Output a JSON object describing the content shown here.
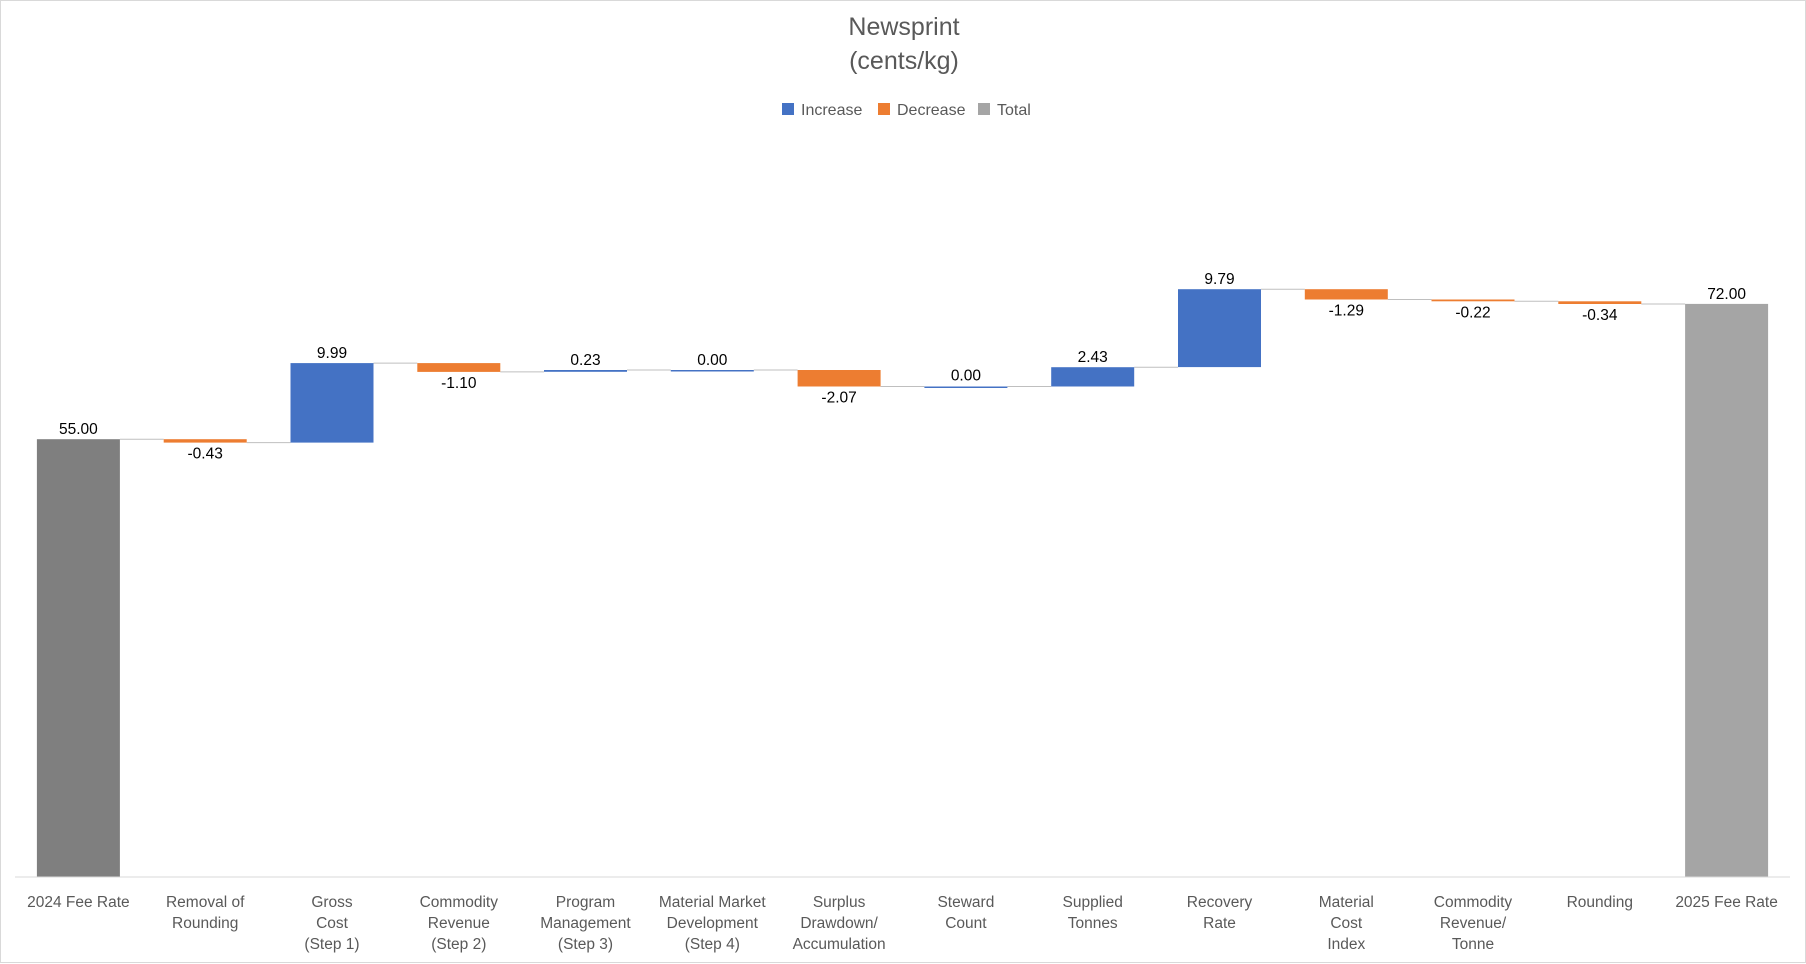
{
  "chart_data": {
    "type": "waterfall",
    "title": "Newsprint",
    "subtitle": "(cents/kg)",
    "legend": {
      "placement": "top",
      "items": [
        {
          "name": "Increase",
          "color": "#4472C4"
        },
        {
          "name": "Decrease",
          "color": "#ED7D31"
        },
        {
          "name": "Total",
          "color": "#A5A5A5"
        }
      ]
    },
    "colors": {
      "increase": "#4472C4",
      "decrease": "#ED7D31",
      "total_start": "#7F7F7F",
      "total_end": "#A5A5A5",
      "connector": "#BFBFBF",
      "axis": "#D9D9D9"
    },
    "ylim": [
      0,
      80
    ],
    "grid": false,
    "categories": [
      [
        "2024 Fee Rate"
      ],
      [
        "Removal of",
        "Rounding"
      ],
      [
        "Gross",
        "Cost",
        "(Step 1)"
      ],
      [
        "Commodity",
        "Revenue",
        "(Step 2)"
      ],
      [
        "Program",
        "Management",
        "(Step 3)"
      ],
      [
        "Material Market",
        "Development",
        "(Step 4)"
      ],
      [
        "Surplus",
        "Drawdown/",
        "Accumulation"
      ],
      [
        "Steward",
        "Count"
      ],
      [
        "Supplied",
        "Tonnes"
      ],
      [
        "Recovery",
        "Rate"
      ],
      [
        "Material",
        "Cost",
        "Index"
      ],
      [
        "Commodity",
        "Revenue/",
        "Tonne"
      ],
      [
        "Rounding"
      ],
      [
        "2025 Fee Rate"
      ]
    ],
    "kinds": [
      "total",
      "decrease",
      "increase",
      "decrease",
      "increase",
      "increase",
      "decrease",
      "increase",
      "increase",
      "increase",
      "decrease",
      "decrease",
      "decrease",
      "total"
    ],
    "values": [
      55.0,
      -0.43,
      9.99,
      -1.1,
      0.23,
      0.0,
      -2.07,
      0.0,
      2.43,
      9.79,
      -1.29,
      -0.22,
      -0.34,
      72.0
    ],
    "labels": [
      "55.00",
      "-0.43",
      "9.99",
      "-1.10",
      "0.23",
      "0.00",
      "-2.07",
      "0.00",
      "2.43",
      "9.79",
      "-1.29",
      "-0.22",
      "-0.34",
      "72.00"
    ]
  }
}
